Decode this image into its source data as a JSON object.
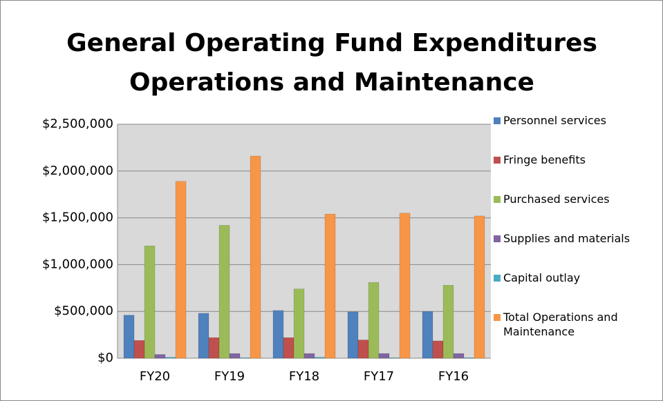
{
  "chart_data": {
    "type": "bar",
    "title": [
      "General Operating Fund Expenditures",
      "Operations and Maintenance"
    ],
    "categories": [
      "FY20",
      "FY19",
      "FY18",
      "FY17",
      "FY16"
    ],
    "series": [
      {
        "name": "Personnel services",
        "color": "#4f81bd",
        "values": [
          460000,
          480000,
          510000,
          495000,
          500000
        ]
      },
      {
        "name": "Fringe benefits",
        "color": "#c0504d",
        "values": [
          190000,
          220000,
          220000,
          195000,
          185000
        ]
      },
      {
        "name": "Purchased services",
        "color": "#9bbb59",
        "values": [
          1200000,
          1420000,
          740000,
          810000,
          780000
        ]
      },
      {
        "name": "Supplies and materials",
        "color": "#8064a2",
        "values": [
          40000,
          50000,
          50000,
          50000,
          50000
        ]
      },
      {
        "name": "Capital outlay",
        "color": "#4bacc6",
        "values": [
          10000,
          5000,
          10000,
          5000,
          5000
        ]
      },
      {
        "name": "Total Operations and Maintenance",
        "color": "#f79646",
        "values": [
          1890000,
          2160000,
          1540000,
          1550000,
          1520000
        ]
      }
    ],
    "ylim": [
      0,
      2500000
    ],
    "yticks": [
      {
        "value": 0,
        "label": "$0"
      },
      {
        "value": 500000,
        "label": "$500,000"
      },
      {
        "value": 1000000,
        "label": "$1,000,000"
      },
      {
        "value": 1500000,
        "label": "$1,500,000"
      },
      {
        "value": 2000000,
        "label": "$2,000,000"
      },
      {
        "value": 2500000,
        "label": "$2,500,000"
      }
    ],
    "grid": true,
    "legend": "right"
  }
}
